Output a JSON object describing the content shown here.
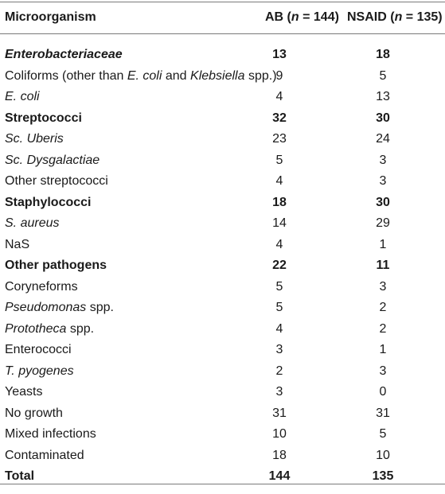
{
  "header": {
    "col1": "Microorganism",
    "col2_prefix": "AB (",
    "col2_n": "n",
    "col2_suffix": " = 144)",
    "col3_prefix": "NSAID (",
    "col3_n": "n",
    "col3_suffix": " = 135)"
  },
  "rows": [
    {
      "name": "Enterobacteriaceae",
      "ab": "13",
      "nsaid": "18",
      "style": "bold-italic"
    },
    {
      "name_parts": [
        "Coliforms (other than ",
        "E. coli",
        " and ",
        "Klebsiella",
        " spp.)"
      ],
      "ab": "9",
      "nsaid": "5",
      "style": "mixed"
    },
    {
      "name": "E. coli",
      "ab": "4",
      "nsaid": "13",
      "style": "italic"
    },
    {
      "name": "Streptococci",
      "ab": "32",
      "nsaid": "30",
      "style": "bold"
    },
    {
      "name": "Sc. Uberis",
      "ab": "23",
      "nsaid": "24",
      "style": "italic"
    },
    {
      "name": "Sc. Dysgalactiae",
      "ab": "5",
      "nsaid": "3",
      "style": "italic"
    },
    {
      "name": "Other streptococci",
      "ab": "4",
      "nsaid": "3",
      "style": "normal"
    },
    {
      "name": "Staphylococci",
      "ab": "18",
      "nsaid": "30",
      "style": "bold"
    },
    {
      "name": "S. aureus",
      "ab": "14",
      "nsaid": "29",
      "style": "italic"
    },
    {
      "name": "NaS",
      "ab": "4",
      "nsaid": "1",
      "style": "normal"
    },
    {
      "name": "Other pathogens",
      "ab": "22",
      "nsaid": "11",
      "style": "bold"
    },
    {
      "name": "Coryneforms",
      "ab": "5",
      "nsaid": "3",
      "style": "normal"
    },
    {
      "name_parts": [
        "Pseudomonas",
        " spp."
      ],
      "ab": "5",
      "nsaid": "2",
      "style": "italic-first"
    },
    {
      "name_parts": [
        "Prototheca",
        " spp."
      ],
      "ab": "4",
      "nsaid": "2",
      "style": "italic-first"
    },
    {
      "name": "Enterococci",
      "ab": "3",
      "nsaid": "1",
      "style": "normal"
    },
    {
      "name": "T. pyogenes",
      "ab": "2",
      "nsaid": "3",
      "style": "italic"
    },
    {
      "name": "Yeasts",
      "ab": "3",
      "nsaid": "0",
      "style": "normal"
    },
    {
      "name": "No growth",
      "ab": "31",
      "nsaid": "31",
      "style": "normal"
    },
    {
      "name": "Mixed infections",
      "ab": "10",
      "nsaid": "5",
      "style": "normal"
    },
    {
      "name": "Contaminated",
      "ab": "18",
      "nsaid": "10",
      "style": "normal"
    },
    {
      "name": "Total",
      "ab": "144",
      "nsaid": "135",
      "style": "bold"
    }
  ]
}
